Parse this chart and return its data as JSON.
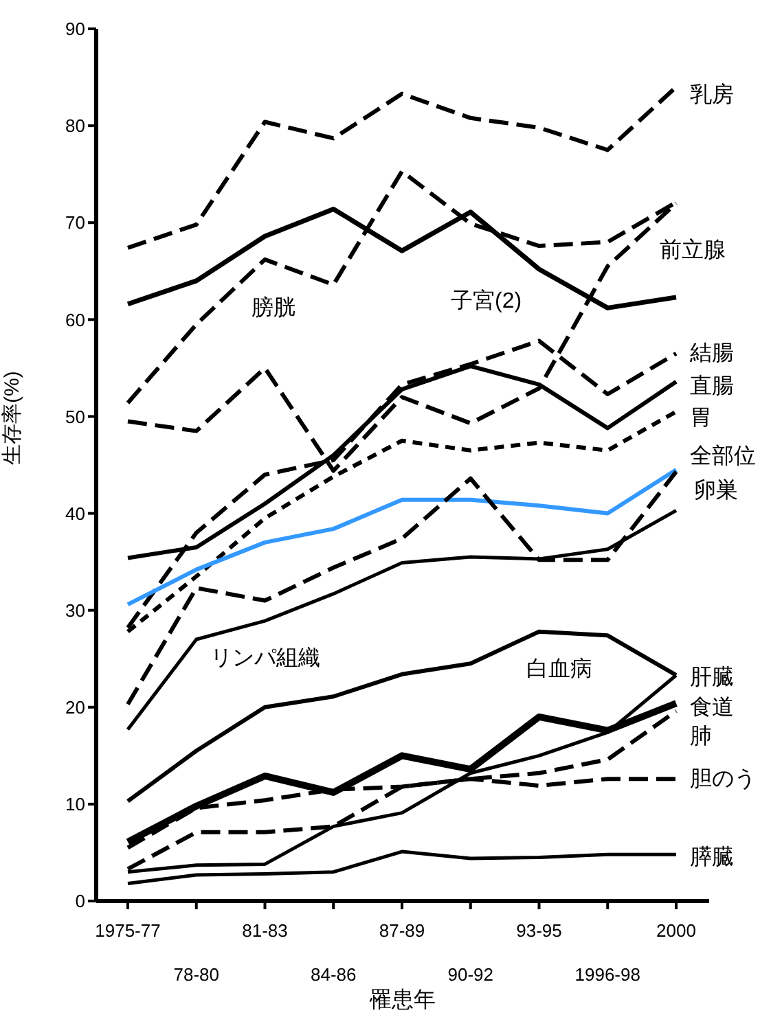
{
  "chart_data": {
    "type": "line",
    "xlabel": "罹患年",
    "ylabel": "生存率(%)",
    "categories": [
      "1975-77",
      "78-80",
      "81-83",
      "84-86",
      "87-89",
      "90-92",
      "93-95",
      "1996-98",
      "2000"
    ],
    "ylim": [
      0,
      90
    ],
    "yticks": [
      0,
      10,
      20,
      30,
      40,
      50,
      60,
      70,
      80,
      90
    ],
    "marker": "none",
    "series": [
      {
        "name": "乳房",
        "color": "#000000",
        "line_style": "dashed",
        "values": [
          67.4,
          69.8,
          80.4,
          78.7,
          83.3,
          80.8,
          79.8,
          77.5,
          84.0
        ]
      },
      {
        "name": "前立腺",
        "color": "#000000",
        "line_style": "dashed",
        "values": [
          49.5,
          48.5,
          55.0,
          44.4,
          52.0,
          49.3,
          52.9,
          65.5,
          72.0
        ]
      },
      {
        "name": "膀胱",
        "color": "#000000",
        "line_style": "dashed",
        "values": [
          51.4,
          59.5,
          66.2,
          63.6,
          75.3,
          69.9,
          67.6,
          68.0,
          72.1
        ]
      },
      {
        "name": "子宮(2)",
        "color": "#000000",
        "line_style": "solid",
        "values": [
          61.6,
          64.0,
          68.6,
          71.4,
          67.1,
          71.1,
          65.2,
          61.2,
          62.3
        ]
      },
      {
        "name": "結腸",
        "color": "#000000",
        "line_style": "dashed",
        "values": [
          28.2,
          38.0,
          44.0,
          45.5,
          53.3,
          55.4,
          57.8,
          52.3,
          56.5
        ]
      },
      {
        "name": "直腸",
        "color": "#000000",
        "line_style": "solid",
        "values": [
          35.4,
          36.5,
          41.0,
          46.0,
          52.8,
          55.2,
          53.3,
          48.8,
          53.6
        ]
      },
      {
        "name": "胃",
        "color": "#000000",
        "line_style": "dotted",
        "values": [
          27.8,
          33.5,
          39.5,
          43.8,
          47.5,
          46.5,
          47.3,
          46.5,
          50.5
        ]
      },
      {
        "name": "全部位",
        "color": "#3399ff",
        "line_style": "solid",
        "values": [
          30.6,
          34.2,
          37.0,
          38.4,
          41.4,
          41.4,
          40.8,
          40.0,
          44.5
        ]
      },
      {
        "name": "卵巣",
        "color": "#000000",
        "line_style": "dashed",
        "values": [
          20.3,
          32.3,
          31.0,
          34.4,
          37.4,
          43.6,
          35.2,
          35.2,
          44.3
        ]
      },
      {
        "name": "リンパ組織",
        "color": "#000000",
        "line_style": "solid",
        "values": [
          17.7,
          27.0,
          28.9,
          31.7,
          34.9,
          35.5,
          35.3,
          36.3,
          40.3
        ]
      },
      {
        "name": "白血病",
        "color": "#000000",
        "line_style": "solid",
        "values": [
          10.3,
          15.5,
          20.0,
          21.1,
          23.4,
          24.5,
          27.8,
          27.4,
          23.3
        ]
      },
      {
        "name": "肝臓",
        "color": "#000000",
        "line_style": "solid",
        "values": [
          3.0,
          3.7,
          3.8,
          7.7,
          9.1,
          13.2,
          15.0,
          17.4,
          23.3
        ]
      },
      {
        "name": "食道",
        "color": "#000000",
        "line_style": "solid",
        "values": [
          6.1,
          9.8,
          12.9,
          11.2,
          15.0,
          13.6,
          19.0,
          17.6,
          20.4
        ]
      },
      {
        "name": "肺",
        "color": "#000000",
        "line_style": "dashed",
        "values": [
          5.5,
          9.6,
          10.4,
          11.5,
          11.8,
          12.6,
          13.2,
          14.6,
          19.6
        ]
      },
      {
        "name": "胆のう",
        "color": "#000000",
        "line_style": "dashed",
        "values": [
          3.3,
          7.1,
          7.1,
          7.7,
          11.8,
          12.6,
          11.9,
          12.6,
          12.6
        ]
      },
      {
        "name": "膵臓",
        "color": "#000000",
        "line_style": "solid",
        "values": [
          1.8,
          2.7,
          2.8,
          3.0,
          5.1,
          4.4,
          4.5,
          4.8,
          4.8
        ]
      }
    ]
  }
}
